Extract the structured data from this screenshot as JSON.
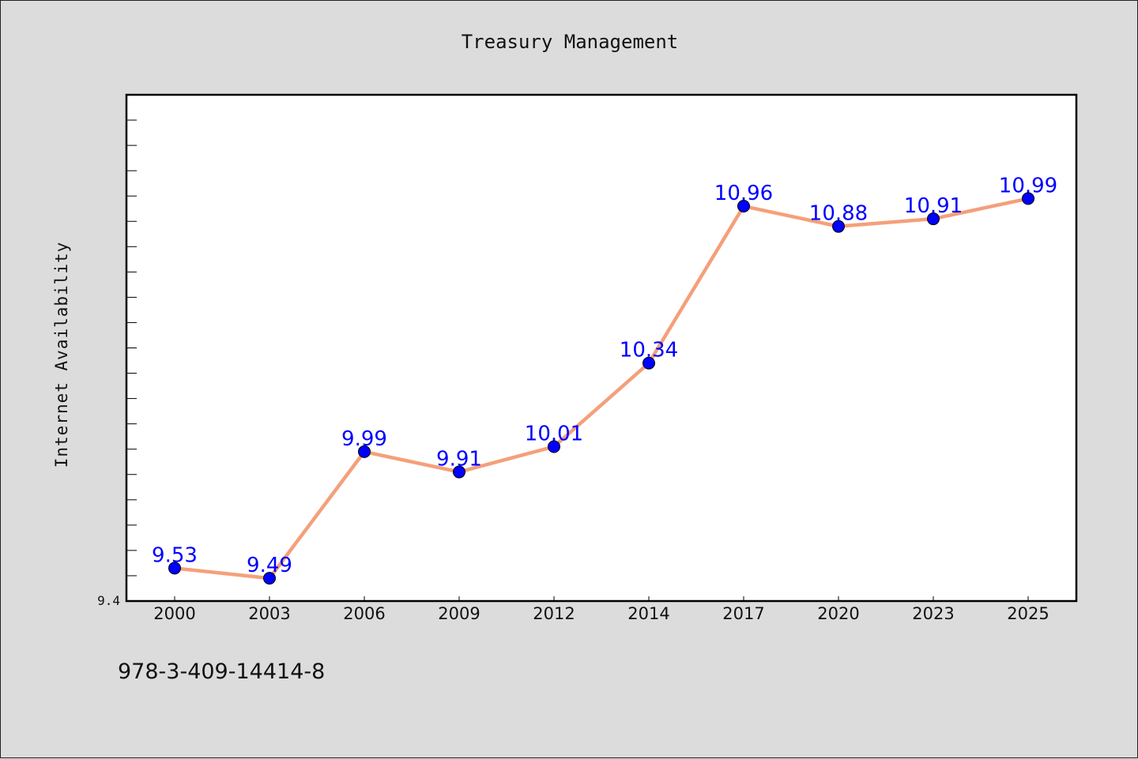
{
  "chart_data": {
    "type": "line",
    "title": "Treasury Management",
    "xlabel": "",
    "ylabel": "Internet Availability",
    "categories": [
      "2000",
      "2003",
      "2006",
      "2009",
      "2012",
      "2014",
      "2017",
      "2020",
      "2023",
      "2025"
    ],
    "series": [
      {
        "values": [
          9.53,
          9.49,
          9.99,
          9.91,
          10.01,
          10.34,
          10.96,
          10.88,
          10.91,
          10.99
        ],
        "line_color": "#f4a07a",
        "marker_color": "#0000ff"
      }
    ],
    "data_labels": [
      "9.53",
      "9.49",
      "9.99",
      "9.91",
      "10.01",
      "10.34",
      "10.96",
      "10.88",
      "10.91",
      "10.99"
    ],
    "ylim": [
      9.4,
      11.4
    ],
    "yticks_labeled": [
      "9.4"
    ],
    "grid": false,
    "legend": "none"
  },
  "footnote": "978-3-409-14414-8"
}
